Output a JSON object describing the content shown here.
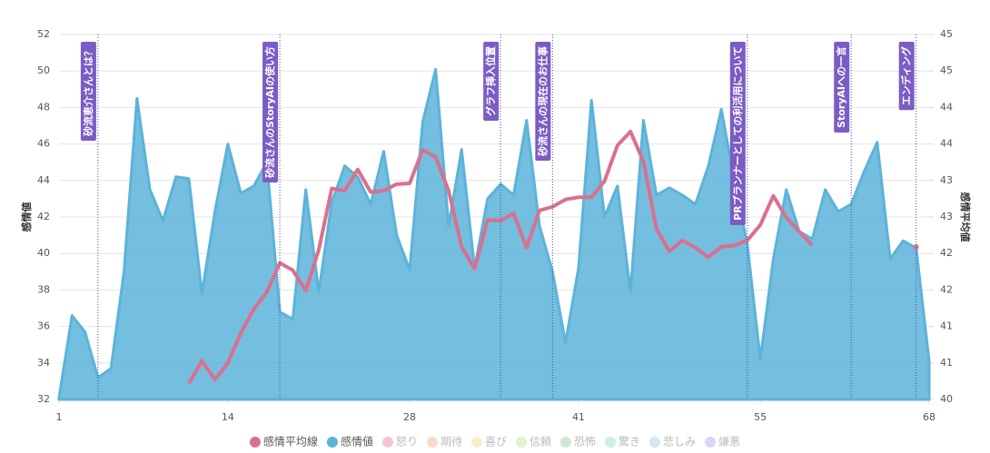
{
  "chart_data": {
    "type": "line",
    "y_label": "感情値",
    "y2_label": "感情平均値",
    "x": [
      1,
      2,
      3,
      4,
      5,
      6,
      7,
      8,
      9,
      10,
      11,
      12,
      13,
      14,
      15,
      16,
      17,
      18,
      19,
      20,
      21,
      22,
      23,
      24,
      25,
      26,
      27,
      28,
      29,
      30,
      31,
      32,
      33,
      34,
      35,
      36,
      37,
      38,
      39,
      40,
      41,
      42,
      43,
      44,
      45,
      46,
      47,
      48,
      49,
      50,
      51,
      52,
      53,
      54,
      55,
      56,
      57,
      58,
      59,
      60,
      61,
      62,
      63,
      64,
      65,
      66,
      67,
      68
    ],
    "xlim": [
      1,
      68
    ],
    "xticks": [
      1,
      14,
      28,
      41,
      55,
      68
    ],
    "ylim": [
      32,
      52
    ],
    "yticks": [
      32,
      34,
      36,
      38,
      40,
      42,
      44,
      46,
      48,
      50,
      52
    ],
    "y2lim": [
      40,
      45
    ],
    "y2ticks": [
      40,
      {
        "value": 40.5,
        "label": "41"
      },
      41,
      {
        "value": 41.5,
        "label": "42"
      },
      42,
      {
        "value": 42.5,
        "label": "43"
      },
      43,
      {
        "value": 43.5,
        "label": "44"
      },
      44,
      {
        "value": 44.5,
        "label": "45"
      },
      45
    ],
    "grid": true,
    "series": [
      {
        "name": "感情平均線",
        "color": "#d9708f",
        "axis": "y2",
        "kind": "line",
        "values": [
          null,
          null,
          null,
          null,
          null,
          null,
          null,
          null,
          null,
          null,
          40.22,
          40.53,
          40.27,
          40.5,
          40.91,
          41.24,
          41.47,
          41.87,
          41.77,
          41.49,
          42.05,
          42.89,
          42.86,
          43.15,
          42.84,
          42.86,
          42.95,
          42.96,
          43.42,
          43.32,
          42.86,
          42.09,
          41.79,
          42.46,
          42.45,
          42.55,
          42.08,
          42.59,
          42.64,
          42.74,
          42.77,
          42.77,
          42.99,
          43.48,
          43.67,
          43.26,
          42.34,
          42.03,
          42.18,
          42.08,
          41.95,
          42.09,
          42.11,
          42.18,
          42.39,
          42.79,
          42.49,
          42.3,
          42.11,
          null,
          null,
          null,
          null,
          null,
          null,
          null,
          42.09,
          null
        ]
      },
      {
        "name": "感情値",
        "color": "#5cb3d9",
        "kind": "area",
        "values": [
          32.1,
          36.6,
          35.7,
          33.2,
          33.7,
          39,
          48.5,
          43.5,
          41.8,
          44.2,
          44.1,
          37.8,
          42.3,
          46,
          43.3,
          43.7,
          45,
          36.8,
          36.4,
          43.5,
          37.9,
          42.8,
          44.8,
          44.2,
          42.7,
          45.6,
          41,
          39.1,
          47.2,
          50.1,
          41.5,
          45.7,
          39.2,
          43,
          43.8,
          43.2,
          47.3,
          41.5,
          39,
          35.1,
          39.2,
          48.4,
          42,
          43.7,
          37.9,
          47.3,
          43.2,
          43.6,
          43.2,
          42.7,
          44.8,
          47.9,
          44,
          40.5,
          34.2,
          39.7,
          43.5,
          41.2,
          40.8,
          43.5,
          42.3,
          42.7,
          44.5,
          46.1,
          39.7,
          40.7,
          40.3,
          34.1
        ]
      }
    ],
    "hidden_series": [
      {
        "name": "怒り",
        "color": "#f6c6cf"
      },
      {
        "name": "期待",
        "color": "#f8dcc6"
      },
      {
        "name": "喜び",
        "color": "#f8efc8"
      },
      {
        "name": "信頼",
        "color": "#e3f2cf"
      },
      {
        "name": "恐怖",
        "color": "#cfe8d2"
      },
      {
        "name": "驚き",
        "color": "#cfeee8"
      },
      {
        "name": "悲しみ",
        "color": "#d3e6f3"
      },
      {
        "name": "嫌悪",
        "color": "#ddd6f3"
      }
    ],
    "annotations": [
      {
        "x": 4,
        "label": "砂流恵介さんとは？"
      },
      {
        "x": 18,
        "label": "砂流さんのStoryAIの使い方"
      },
      {
        "x": 35,
        "label": "グラフ挿入位置"
      },
      {
        "x": 39,
        "label": "砂流さんの現在のお仕事"
      },
      {
        "x": 54,
        "label": "PRプランナーとしての利活用について"
      },
      {
        "x": 62,
        "label": "StoryAIへの一言"
      },
      {
        "x": 67,
        "label": "エンディング"
      }
    ],
    "annotation_color": "#7c5cc4"
  }
}
